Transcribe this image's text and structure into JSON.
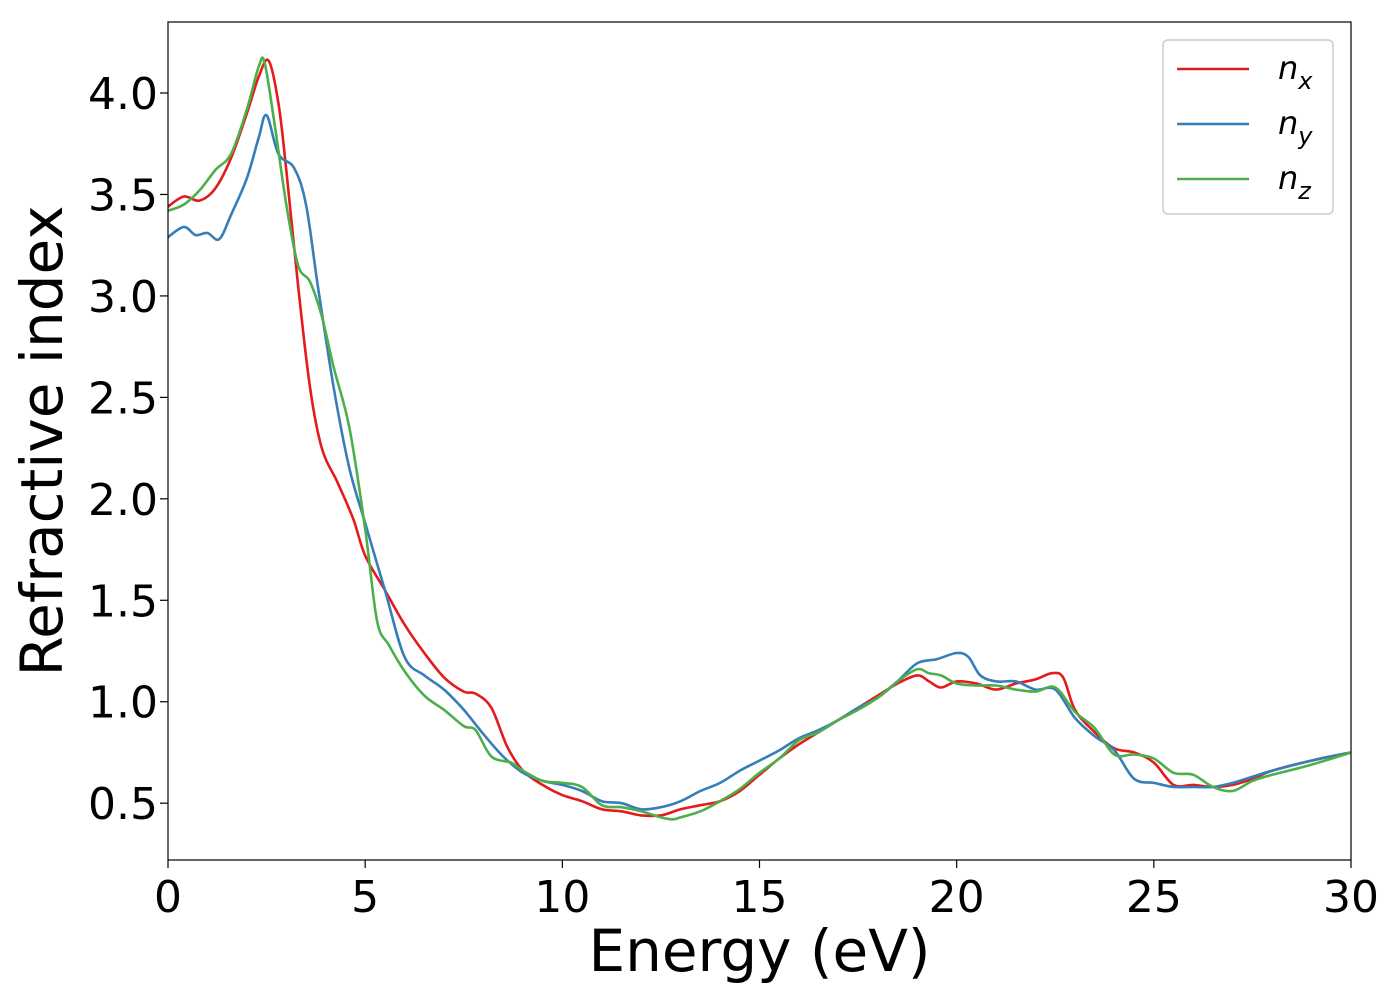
{
  "chart_data": {
    "type": "line",
    "xlabel": "Energy (eV)",
    "ylabel": "Refractive index",
    "xlim": [
      0,
      30
    ],
    "ylim": [
      0.22,
      4.35
    ],
    "xticks": [
      0,
      5,
      10,
      15,
      20,
      25,
      30
    ],
    "xtick_labels": [
      "0",
      "5",
      "10",
      "15",
      "20",
      "25",
      "30"
    ],
    "yticks": [
      0.5,
      1.0,
      1.5,
      2.0,
      2.5,
      3.0,
      3.5,
      4.0
    ],
    "ytick_labels": [
      "0.5",
      "1.0",
      "1.5",
      "2.0",
      "2.5",
      "3.0",
      "3.5",
      "4.0"
    ],
    "grid": false,
    "legend_position": "top-right",
    "series": [
      {
        "name": "n",
        "subscript": "x",
        "color": "#e41a1c",
        "points": [
          [
            0,
            3.44
          ],
          [
            0.4,
            3.49
          ],
          [
            0.8,
            3.47
          ],
          [
            1.2,
            3.53
          ],
          [
            1.6,
            3.68
          ],
          [
            2.0,
            3.9
          ],
          [
            2.3,
            4.08
          ],
          [
            2.55,
            4.16
          ],
          [
            2.8,
            3.95
          ],
          [
            3.0,
            3.62
          ],
          [
            3.3,
            3.05
          ],
          [
            3.6,
            2.55
          ],
          [
            3.9,
            2.25
          ],
          [
            4.3,
            2.08
          ],
          [
            4.7,
            1.9
          ],
          [
            5.0,
            1.72
          ],
          [
            5.5,
            1.55
          ],
          [
            6.0,
            1.38
          ],
          [
            6.5,
            1.24
          ],
          [
            7.0,
            1.12
          ],
          [
            7.5,
            1.05
          ],
          [
            7.8,
            1.04
          ],
          [
            8.2,
            0.97
          ],
          [
            8.6,
            0.78
          ],
          [
            9.0,
            0.66
          ],
          [
            9.5,
            0.59
          ],
          [
            10.0,
            0.54
          ],
          [
            10.5,
            0.51
          ],
          [
            11.0,
            0.47
          ],
          [
            11.5,
            0.46
          ],
          [
            12.0,
            0.44
          ],
          [
            12.5,
            0.44
          ],
          [
            13.0,
            0.47
          ],
          [
            13.5,
            0.49
          ],
          [
            14.0,
            0.51
          ],
          [
            14.5,
            0.56
          ],
          [
            15.0,
            0.64
          ],
          [
            15.5,
            0.72
          ],
          [
            16.0,
            0.79
          ],
          [
            16.5,
            0.85
          ],
          [
            17.0,
            0.91
          ],
          [
            17.5,
            0.97
          ],
          [
            18.0,
            1.03
          ],
          [
            18.5,
            1.09
          ],
          [
            19.0,
            1.13
          ],
          [
            19.3,
            1.1
          ],
          [
            19.6,
            1.07
          ],
          [
            20.0,
            1.1
          ],
          [
            20.5,
            1.09
          ],
          [
            21.0,
            1.06
          ],
          [
            21.5,
            1.09
          ],
          [
            22.0,
            1.11
          ],
          [
            22.4,
            1.14
          ],
          [
            22.7,
            1.12
          ],
          [
            23.0,
            0.96
          ],
          [
            23.5,
            0.85
          ],
          [
            24.0,
            0.77
          ],
          [
            24.5,
            0.75
          ],
          [
            25.0,
            0.7
          ],
          [
            25.5,
            0.59
          ],
          [
            26.0,
            0.59
          ],
          [
            26.5,
            0.58
          ],
          [
            27.0,
            0.59
          ],
          [
            27.5,
            0.62
          ],
          [
            28.0,
            0.66
          ],
          [
            29.0,
            0.71
          ],
          [
            30.0,
            0.75
          ]
        ]
      },
      {
        "name": "n",
        "subscript": "y",
        "color": "#377eb8",
        "points": [
          [
            0,
            3.29
          ],
          [
            0.4,
            3.34
          ],
          [
            0.7,
            3.3
          ],
          [
            1.0,
            3.31
          ],
          [
            1.3,
            3.28
          ],
          [
            1.6,
            3.4
          ],
          [
            2.0,
            3.58
          ],
          [
            2.3,
            3.78
          ],
          [
            2.5,
            3.89
          ],
          [
            2.8,
            3.7
          ],
          [
            3.2,
            3.63
          ],
          [
            3.5,
            3.45
          ],
          [
            3.8,
            3.05
          ],
          [
            4.2,
            2.55
          ],
          [
            4.6,
            2.15
          ],
          [
            5.0,
            1.88
          ],
          [
            5.5,
            1.55
          ],
          [
            6.0,
            1.22
          ],
          [
            6.5,
            1.13
          ],
          [
            7.0,
            1.06
          ],
          [
            7.5,
            0.96
          ],
          [
            8.0,
            0.84
          ],
          [
            8.5,
            0.73
          ],
          [
            9.0,
            0.65
          ],
          [
            9.5,
            0.61
          ],
          [
            10.0,
            0.59
          ],
          [
            10.5,
            0.56
          ],
          [
            11.0,
            0.51
          ],
          [
            11.5,
            0.5
          ],
          [
            12.0,
            0.47
          ],
          [
            12.5,
            0.48
          ],
          [
            13.0,
            0.51
          ],
          [
            13.5,
            0.56
          ],
          [
            14.0,
            0.6
          ],
          [
            14.5,
            0.66
          ],
          [
            15.0,
            0.71
          ],
          [
            15.5,
            0.76
          ],
          [
            16.0,
            0.82
          ],
          [
            16.5,
            0.86
          ],
          [
            17.0,
            0.91
          ],
          [
            17.5,
            0.97
          ],
          [
            18.0,
            1.02
          ],
          [
            18.5,
            1.1
          ],
          [
            19.0,
            1.19
          ],
          [
            19.5,
            1.21
          ],
          [
            20.0,
            1.24
          ],
          [
            20.3,
            1.22
          ],
          [
            20.6,
            1.13
          ],
          [
            21.0,
            1.1
          ],
          [
            21.5,
            1.1
          ],
          [
            22.0,
            1.06
          ],
          [
            22.5,
            1.06
          ],
          [
            23.0,
            0.92
          ],
          [
            23.5,
            0.83
          ],
          [
            24.0,
            0.76
          ],
          [
            24.5,
            0.62
          ],
          [
            25.0,
            0.6
          ],
          [
            25.5,
            0.58
          ],
          [
            26.0,
            0.58
          ],
          [
            26.5,
            0.58
          ],
          [
            27.0,
            0.6
          ],
          [
            27.5,
            0.63
          ],
          [
            28.0,
            0.66
          ],
          [
            29.0,
            0.71
          ],
          [
            30.0,
            0.75
          ]
        ]
      },
      {
        "name": "n",
        "subscript": "z",
        "color": "#4daf4a",
        "points": [
          [
            0,
            3.42
          ],
          [
            0.4,
            3.45
          ],
          [
            0.8,
            3.52
          ],
          [
            1.2,
            3.62
          ],
          [
            1.6,
            3.7
          ],
          [
            2.0,
            3.92
          ],
          [
            2.3,
            4.13
          ],
          [
            2.45,
            4.15
          ],
          [
            2.7,
            3.85
          ],
          [
            3.0,
            3.45
          ],
          [
            3.3,
            3.15
          ],
          [
            3.6,
            3.07
          ],
          [
            3.9,
            2.9
          ],
          [
            4.2,
            2.65
          ],
          [
            4.6,
            2.35
          ],
          [
            5.0,
            1.85
          ],
          [
            5.3,
            1.4
          ],
          [
            5.6,
            1.28
          ],
          [
            6.0,
            1.15
          ],
          [
            6.5,
            1.03
          ],
          [
            7.0,
            0.96
          ],
          [
            7.5,
            0.88
          ],
          [
            7.8,
            0.86
          ],
          [
            8.2,
            0.73
          ],
          [
            8.7,
            0.7
          ],
          [
            9.0,
            0.66
          ],
          [
            9.5,
            0.61
          ],
          [
            10.0,
            0.6
          ],
          [
            10.5,
            0.58
          ],
          [
            11.0,
            0.49
          ],
          [
            11.5,
            0.48
          ],
          [
            12.0,
            0.46
          ],
          [
            12.5,
            0.43
          ],
          [
            12.8,
            0.42
          ],
          [
            13.0,
            0.43
          ],
          [
            13.5,
            0.46
          ],
          [
            14.0,
            0.51
          ],
          [
            14.5,
            0.57
          ],
          [
            15.0,
            0.65
          ],
          [
            15.5,
            0.72
          ],
          [
            16.0,
            0.81
          ],
          [
            16.5,
            0.85
          ],
          [
            17.0,
            0.91
          ],
          [
            17.5,
            0.96
          ],
          [
            18.0,
            1.02
          ],
          [
            18.5,
            1.1
          ],
          [
            19.0,
            1.16
          ],
          [
            19.3,
            1.14
          ],
          [
            19.6,
            1.13
          ],
          [
            20.0,
            1.09
          ],
          [
            20.5,
            1.08
          ],
          [
            21.0,
            1.08
          ],
          [
            21.5,
            1.06
          ],
          [
            22.0,
            1.05
          ],
          [
            22.5,
            1.07
          ],
          [
            23.0,
            0.95
          ],
          [
            23.5,
            0.87
          ],
          [
            24.0,
            0.74
          ],
          [
            24.5,
            0.74
          ],
          [
            25.0,
            0.72
          ],
          [
            25.5,
            0.65
          ],
          [
            26.0,
            0.64
          ],
          [
            26.5,
            0.58
          ],
          [
            27.0,
            0.56
          ],
          [
            27.5,
            0.61
          ],
          [
            28.0,
            0.64
          ],
          [
            29.0,
            0.69
          ],
          [
            30.0,
            0.75
          ]
        ]
      }
    ]
  }
}
